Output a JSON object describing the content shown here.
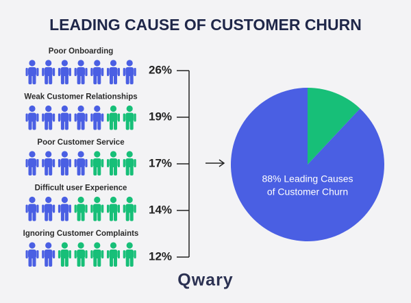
{
  "chart_data": [
    {
      "type": "pictograph",
      "title": "LEADING CAUSE OF CUSTOMER CHURN",
      "categories": [
        "Poor Onboarding",
        "Weak Customer Relationships",
        "Poor Customer Service",
        "Difficult user Experience",
        "Ignoring Customer Complaints"
      ],
      "values": [
        26,
        19,
        17,
        14,
        12
      ],
      "value_labels": [
        "26%",
        "19%",
        "17%",
        "14%",
        "12%"
      ],
      "icons_per_row": 7,
      "filled_icons": [
        7,
        5,
        4,
        3,
        2
      ],
      "colors": [
        "#4a5fe3",
        "#17bf78"
      ]
    },
    {
      "type": "pie",
      "values": [
        88,
        12
      ],
      "colors": [
        "#4a5fe3",
        "#17bf78"
      ],
      "label_lines": [
        "88% Leading Causes",
        "of Customer Churn"
      ]
    }
  ],
  "footer": {
    "brand": "Qwary"
  }
}
